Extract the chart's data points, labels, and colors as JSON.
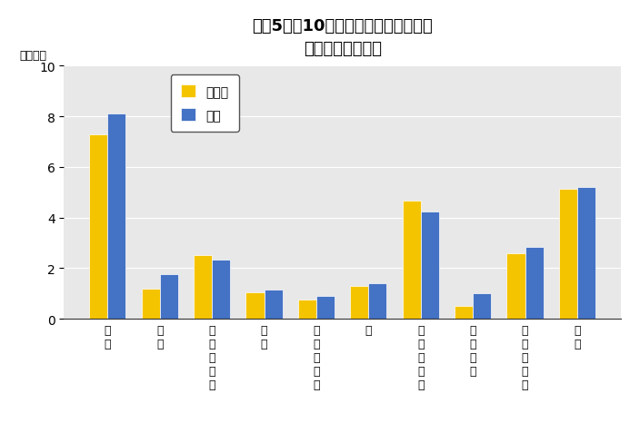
{
  "title_line1": "令和5年の10大費目別家計消費支出額",
  "title_line2": "（鳥取市・全国）",
  "ylabel": "（万円）",
  "tottori": [
    7.3,
    1.2,
    2.5,
    1.05,
    0.75,
    1.3,
    4.65,
    0.5,
    2.6,
    5.15
  ],
  "national": [
    8.1,
    1.75,
    2.35,
    1.15,
    0.9,
    1.4,
    4.25,
    1.0,
    2.85,
    5.2
  ],
  "tottori_color": "#F5C400",
  "national_color": "#4472C4",
  "plot_bg_color": "#E8E8E8",
  "fig_bg_color": "#FFFFFF",
  "ylim": [
    0,
    10
  ],
  "yticks": [
    0,
    2,
    4,
    6,
    8,
    10
  ],
  "legend_tottori": "鳥取市",
  "legend_national": "全国",
  "bar_width": 0.35,
  "grid_color": "#FFFFFF",
  "title_fontsize": 13,
  "label_fontsize": 9,
  "legend_fontsize": 10,
  "ylabel_fontsize": 9
}
